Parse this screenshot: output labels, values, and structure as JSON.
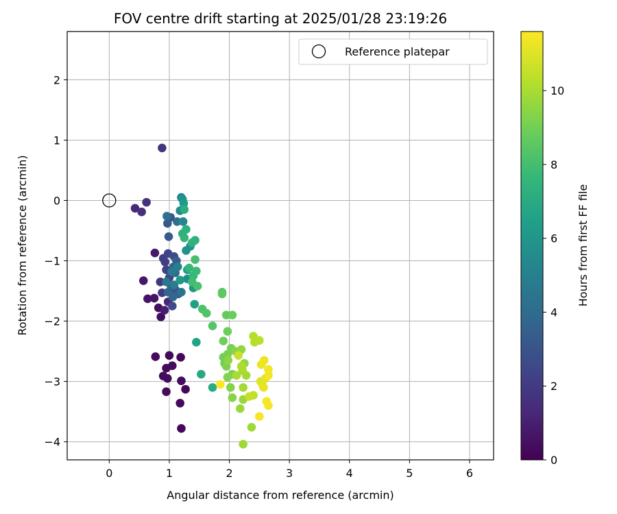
{
  "chart_data": {
    "type": "scatter",
    "title": "FOV centre drift starting at 2025/01/28 23:19:26",
    "xlabel": "Angular distance from reference (arcmin)",
    "ylabel": "Rotation from reference (arcmin)",
    "xlim": [
      -0.7,
      6.4
    ],
    "ylim": [
      -4.3,
      2.8
    ],
    "xticks": [
      0,
      1,
      2,
      3,
      4,
      5,
      6
    ],
    "yticks": [
      -4,
      -3,
      -2,
      -1,
      0,
      1,
      2
    ],
    "grid": true,
    "legend_position": "top-right",
    "legend": [
      {
        "label": "Reference platepar",
        "marker": "hollow-circle"
      }
    ],
    "reference_point": {
      "x": 0,
      "y": 0
    },
    "colorbar": {
      "label": "Hours from first FF file",
      "range": [
        0,
        11.6
      ],
      "ticks": [
        0,
        2,
        4,
        6,
        8,
        10
      ],
      "colormap": "viridis"
    },
    "colormap_stops": [
      "#440154",
      "#482878",
      "#3e4989",
      "#31688e",
      "#26828e",
      "#1f9e89",
      "#35b779",
      "#6ece58",
      "#b5de2b",
      "#fde725"
    ],
    "points": [
      {
        "x": 1.2,
        "y": -3.78,
        "h": 0.2
      },
      {
        "x": 1.18,
        "y": -3.36,
        "h": 0.3
      },
      {
        "x": 0.95,
        "y": -3.17,
        "h": 0.3
      },
      {
        "x": 1.27,
        "y": -3.13,
        "h": 0.2
      },
      {
        "x": 1.2,
        "y": -2.99,
        "h": 0.3
      },
      {
        "x": 0.97,
        "y": -2.95,
        "h": 0.4
      },
      {
        "x": 0.9,
        "y": -2.91,
        "h": 0.3
      },
      {
        "x": 0.95,
        "y": -2.78,
        "h": 0.3
      },
      {
        "x": 1.05,
        "y": -2.74,
        "h": 0.4
      },
      {
        "x": 0.77,
        "y": -2.59,
        "h": 0.3
      },
      {
        "x": 1.0,
        "y": -2.57,
        "h": 0.3
      },
      {
        "x": 1.19,
        "y": -2.6,
        "h": 0.3
      },
      {
        "x": 0.86,
        "y": -1.93,
        "h": 0.4
      },
      {
        "x": 0.82,
        "y": -1.78,
        "h": 0.5
      },
      {
        "x": 0.64,
        "y": -1.63,
        "h": 0.6
      },
      {
        "x": 0.75,
        "y": -1.62,
        "h": 0.6
      },
      {
        "x": 0.57,
        "y": -1.33,
        "h": 0.7
      },
      {
        "x": 0.76,
        "y": -0.87,
        "h": 0.8
      },
      {
        "x": 0.92,
        "y": -1.82,
        "h": 1.0
      },
      {
        "x": 0.98,
        "y": -1.68,
        "h": 1.3
      },
      {
        "x": 0.43,
        "y": -0.13,
        "h": 1.4
      },
      {
        "x": 0.54,
        "y": -0.19,
        "h": 1.6
      },
      {
        "x": 0.62,
        "y": -0.03,
        "h": 1.7
      },
      {
        "x": 0.88,
        "y": 0.87,
        "h": 1.8
      },
      {
        "x": 0.85,
        "y": -1.35,
        "h": 1.9
      },
      {
        "x": 0.88,
        "y": -1.53,
        "h": 2.0
      },
      {
        "x": 0.9,
        "y": -0.96,
        "h": 2.1
      },
      {
        "x": 0.93,
        "y": -1.02,
        "h": 2.2
      },
      {
        "x": 0.95,
        "y": -1.15,
        "h": 2.3
      },
      {
        "x": 0.98,
        "y": -0.88,
        "h": 2.4
      },
      {
        "x": 1.0,
        "y": -1.28,
        "h": 2.5
      },
      {
        "x": 1.05,
        "y": -1.75,
        "h": 2.6
      },
      {
        "x": 1.08,
        "y": -0.93,
        "h": 2.8
      },
      {
        "x": 1.1,
        "y": -1.48,
        "h": 2.9
      },
      {
        "x": 1.02,
        "y": -0.28,
        "h": 3.0
      },
      {
        "x": 0.97,
        "y": -0.38,
        "h": 3.2
      },
      {
        "x": 0.99,
        "y": -0.6,
        "h": 3.3
      },
      {
        "x": 1.12,
        "y": -1.0,
        "h": 3.4
      },
      {
        "x": 1.15,
        "y": -1.55,
        "h": 3.5
      },
      {
        "x": 1.03,
        "y": -1.42,
        "h": 3.6
      },
      {
        "x": 1.07,
        "y": -1.1,
        "h": 3.7
      },
      {
        "x": 0.98,
        "y": -1.52,
        "h": 3.8
      },
      {
        "x": 1.06,
        "y": -1.6,
        "h": 3.9
      },
      {
        "x": 1.1,
        "y": -1.2,
        "h": 4.0
      },
      {
        "x": 1.13,
        "y": -0.35,
        "h": 4.2
      },
      {
        "x": 0.96,
        "y": -0.26,
        "h": 4.3
      },
      {
        "x": 1.2,
        "y": -1.52,
        "h": 4.4
      },
      {
        "x": 0.95,
        "y": -1.35,
        "h": 4.6
      },
      {
        "x": 1.04,
        "y": -1.18,
        "h": 4.7
      },
      {
        "x": 1.08,
        "y": -1.4,
        "h": 4.8
      },
      {
        "x": 1.14,
        "y": -1.1,
        "h": 5.0
      },
      {
        "x": 1.2,
        "y": 0.05,
        "h": 5.2
      },
      {
        "x": 1.23,
        "y": -0.35,
        "h": 5.4
      },
      {
        "x": 1.18,
        "y": -0.17,
        "h": 5.5
      },
      {
        "x": 1.3,
        "y": -1.3,
        "h": 5.6
      },
      {
        "x": 1.35,
        "y": -0.76,
        "h": 5.8
      },
      {
        "x": 1.28,
        "y": -0.83,
        "h": 5.9
      },
      {
        "x": 1.22,
        "y": 0.02,
        "h": 6.0
      },
      {
        "x": 1.4,
        "y": -1.45,
        "h": 6.1
      },
      {
        "x": 1.18,
        "y": -1.32,
        "h": 6.2
      },
      {
        "x": 1.24,
        "y": -0.05,
        "h": 6.3
      },
      {
        "x": 1.3,
        "y": -1.15,
        "h": 6.4
      },
      {
        "x": 1.42,
        "y": -1.72,
        "h": 6.5
      },
      {
        "x": 1.45,
        "y": -2.35,
        "h": 6.7
      },
      {
        "x": 1.53,
        "y": -2.88,
        "h": 6.9
      },
      {
        "x": 1.72,
        "y": -3.1,
        "h": 7.1
      },
      {
        "x": 1.25,
        "y": -0.15,
        "h": 7.2
      },
      {
        "x": 1.22,
        "y": -0.55,
        "h": 7.3
      },
      {
        "x": 1.28,
        "y": -0.48,
        "h": 7.4
      },
      {
        "x": 1.38,
        "y": -0.7,
        "h": 7.5
      },
      {
        "x": 1.43,
        "y": -0.66,
        "h": 7.5
      },
      {
        "x": 1.25,
        "y": -0.62,
        "h": 7.6
      },
      {
        "x": 1.33,
        "y": -1.12,
        "h": 7.7
      },
      {
        "x": 1.4,
        "y": -1.25,
        "h": 7.8
      },
      {
        "x": 1.45,
        "y": -1.17,
        "h": 7.9
      },
      {
        "x": 1.38,
        "y": -1.35,
        "h": 8.0
      },
      {
        "x": 1.43,
        "y": -0.98,
        "h": 8.1
      },
      {
        "x": 1.47,
        "y": -1.42,
        "h": 8.2
      },
      {
        "x": 1.55,
        "y": -1.8,
        "h": 8.3
      },
      {
        "x": 1.62,
        "y": -1.87,
        "h": 8.4
      },
      {
        "x": 1.72,
        "y": -2.08,
        "h": 8.5
      },
      {
        "x": 1.88,
        "y": -1.52,
        "h": 8.6
      },
      {
        "x": 1.88,
        "y": -1.55,
        "h": 8.7
      },
      {
        "x": 1.95,
        "y": -1.9,
        "h": 8.8
      },
      {
        "x": 2.05,
        "y": -1.9,
        "h": 8.9
      },
      {
        "x": 1.97,
        "y": -2.17,
        "h": 9.0
      },
      {
        "x": 1.9,
        "y": -2.33,
        "h": 9.0
      },
      {
        "x": 1.9,
        "y": -2.6,
        "h": 9.1
      },
      {
        "x": 1.92,
        "y": -2.7,
        "h": 9.1
      },
      {
        "x": 1.97,
        "y": -2.55,
        "h": 9.2
      },
      {
        "x": 2.03,
        "y": -2.45,
        "h": 9.2
      },
      {
        "x": 1.95,
        "y": -2.75,
        "h": 9.3
      },
      {
        "x": 2.05,
        "y": -2.88,
        "h": 9.3
      },
      {
        "x": 1.97,
        "y": -2.93,
        "h": 9.4
      },
      {
        "x": 2.02,
        "y": -3.1,
        "h": 9.4
      },
      {
        "x": 2.05,
        "y": -3.27,
        "h": 9.5
      },
      {
        "x": 2.1,
        "y": -2.5,
        "h": 9.5
      },
      {
        "x": 1.98,
        "y": -2.65,
        "h": 9.6
      },
      {
        "x": 2.15,
        "y": -2.55,
        "h": 9.6
      },
      {
        "x": 2.2,
        "y": -2.47,
        "h": 9.7
      },
      {
        "x": 2.25,
        "y": -2.7,
        "h": 9.7
      },
      {
        "x": 2.18,
        "y": -3.45,
        "h": 9.8
      },
      {
        "x": 2.23,
        "y": -3.3,
        "h": 9.8
      },
      {
        "x": 2.23,
        "y": -4.04,
        "h": 9.9
      },
      {
        "x": 2.37,
        "y": -3.76,
        "h": 9.9
      },
      {
        "x": 2.28,
        "y": -2.9,
        "h": 10.0
      },
      {
        "x": 2.23,
        "y": -3.1,
        "h": 10.0
      },
      {
        "x": 2.12,
        "y": -2.9,
        "h": 10.1
      },
      {
        "x": 2.22,
        "y": -2.82,
        "h": 10.1
      },
      {
        "x": 2.2,
        "y": -2.75,
        "h": 10.2
      },
      {
        "x": 2.4,
        "y": -2.25,
        "h": 10.3
      },
      {
        "x": 2.42,
        "y": -2.35,
        "h": 10.3
      },
      {
        "x": 2.5,
        "y": -2.32,
        "h": 10.4
      },
      {
        "x": 2.4,
        "y": -3.23,
        "h": 10.5
      },
      {
        "x": 2.33,
        "y": -3.25,
        "h": 10.6
      },
      {
        "x": 2.15,
        "y": -2.57,
        "h": 10.7
      },
      {
        "x": 2.52,
        "y": -3.0,
        "h": 11.0
      },
      {
        "x": 2.55,
        "y": -3.05,
        "h": 11.1
      },
      {
        "x": 2.6,
        "y": -2.95,
        "h": 11.2
      },
      {
        "x": 2.57,
        "y": -3.1,
        "h": 11.2
      },
      {
        "x": 2.53,
        "y": -2.72,
        "h": 11.3
      },
      {
        "x": 2.58,
        "y": -2.65,
        "h": 11.3
      },
      {
        "x": 2.65,
        "y": -2.8,
        "h": 11.4
      },
      {
        "x": 2.65,
        "y": -2.9,
        "h": 11.4
      },
      {
        "x": 2.62,
        "y": -3.33,
        "h": 11.5
      },
      {
        "x": 2.65,
        "y": -3.4,
        "h": 11.5
      },
      {
        "x": 2.5,
        "y": -3.58,
        "h": 11.5
      },
      {
        "x": 1.85,
        "y": -3.05,
        "h": 11.6
      }
    ]
  }
}
